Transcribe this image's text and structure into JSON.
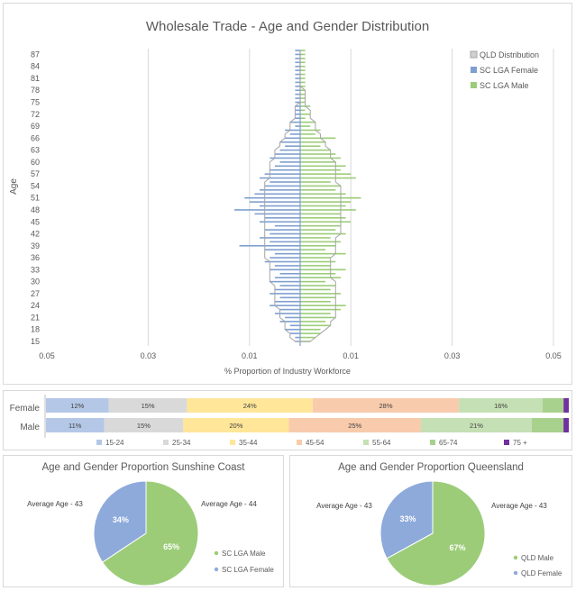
{
  "pyramid": {
    "title": "Wholesale Trade - Age and Gender Distribution",
    "ylabel": "Age",
    "xlabel": "% Proportion of Industry Workforce",
    "xticks": [
      "0.05",
      "0.03",
      "0.01",
      "0.01",
      "0.03",
      "0.05"
    ],
    "legend": [
      "QLD Distribution",
      "SC LGA Female",
      "SC LGA Male"
    ],
    "colors": {
      "female": "#7f9fd0",
      "male": "#9ccc78",
      "qld": "#a6a6a6"
    }
  },
  "chart_data": [
    {
      "type": "bar",
      "title": "Wholesale Trade - Age and Gender Distribution",
      "orientation": "horizontal",
      "xlabel": "% Proportion of Industry Workforce",
      "ylabel": "Age",
      "xlim": [
        -0.05,
        0.05
      ],
      "yticks": [
        15,
        18,
        21,
        24,
        27,
        30,
        33,
        36,
        39,
        42,
        45,
        48,
        51,
        54,
        57,
        60,
        63,
        66,
        69,
        72,
        75,
        78,
        81,
        84,
        87
      ],
      "ages": [
        15,
        16,
        17,
        18,
        19,
        20,
        21,
        22,
        23,
        24,
        25,
        26,
        27,
        28,
        29,
        30,
        31,
        32,
        33,
        34,
        35,
        36,
        37,
        38,
        39,
        40,
        41,
        42,
        43,
        44,
        45,
        46,
        47,
        48,
        49,
        50,
        51,
        52,
        53,
        54,
        55,
        56,
        57,
        58,
        59,
        60,
        61,
        62,
        63,
        64,
        65,
        66,
        67,
        68,
        69,
        70,
        71,
        72,
        73,
        74,
        75,
        76,
        77,
        78,
        79,
        80,
        81,
        82,
        83,
        84,
        85,
        86,
        87,
        88
      ],
      "series": [
        {
          "name": "SC LGA Female",
          "values": [
            -0.001,
            -0.001,
            -0.002,
            -0.003,
            -0.002,
            -0.004,
            -0.003,
            -0.005,
            -0.004,
            -0.006,
            -0.005,
            -0.004,
            -0.006,
            -0.005,
            -0.004,
            -0.006,
            -0.005,
            -0.004,
            -0.006,
            -0.005,
            -0.007,
            -0.006,
            -0.005,
            -0.007,
            -0.012,
            -0.006,
            -0.008,
            -0.006,
            -0.007,
            -0.005,
            -0.008,
            -0.007,
            -0.009,
            -0.013,
            -0.008,
            -0.01,
            -0.011,
            -0.009,
            -0.008,
            -0.007,
            -0.006,
            -0.008,
            -0.007,
            -0.006,
            -0.005,
            -0.004,
            -0.006,
            -0.005,
            -0.004,
            -0.003,
            -0.004,
            -0.003,
            -0.002,
            -0.003,
            -0.001,
            -0.002,
            -0.001,
            -0.001,
            -0.001,
            -0.001,
            -0.001,
            -0.001,
            -0.001,
            -0.001,
            -0.001,
            -0.001,
            -0.001,
            -0.001,
            -0.001,
            -0.001,
            -0.001,
            -0.001,
            -0.001,
            -0.001
          ]
        },
        {
          "name": "SC LGA Male",
          "values": [
            0.002,
            0.003,
            0.004,
            0.004,
            0.006,
            0.005,
            0.007,
            0.006,
            0.008,
            0.009,
            0.006,
            0.007,
            0.008,
            0.006,
            0.007,
            0.005,
            0.008,
            0.007,
            0.009,
            0.006,
            0.007,
            0.006,
            0.009,
            0.005,
            0.007,
            0.008,
            0.006,
            0.009,
            0.007,
            0.008,
            0.01,
            0.009,
            0.008,
            0.011,
            0.009,
            0.01,
            0.012,
            0.009,
            0.007,
            0.008,
            0.006,
            0.011,
            0.01,
            0.008,
            0.009,
            0.007,
            0.008,
            0.007,
            0.006,
            0.004,
            0.005,
            0.007,
            0.003,
            0.004,
            0.002,
            0.003,
            0.001,
            0.002,
            0.001,
            0.002,
            0.001,
            0.001,
            0.001,
            0.001,
            0.001,
            0.001,
            0.001,
            0.001,
            0.001,
            0.001,
            0.001,
            0.001,
            0.001,
            0.001
          ]
        },
        {
          "name": "QLD Distribution",
          "type": "line",
          "female": [
            -0.001,
            -0.002,
            -0.002,
            -0.003,
            -0.003,
            -0.003,
            -0.004,
            -0.004,
            -0.004,
            -0.005,
            -0.005,
            -0.005,
            -0.005,
            -0.005,
            -0.005,
            -0.006,
            -0.006,
            -0.006,
            -0.006,
            -0.006,
            -0.006,
            -0.007,
            -0.007,
            -0.007,
            -0.007,
            -0.007,
            -0.007,
            -0.007,
            -0.007,
            -0.007,
            -0.007,
            -0.007,
            -0.007,
            -0.007,
            -0.007,
            -0.007,
            -0.007,
            -0.007,
            -0.007,
            -0.007,
            -0.007,
            -0.006,
            -0.006,
            -0.006,
            -0.006,
            -0.006,
            -0.005,
            -0.005,
            -0.005,
            -0.004,
            -0.004,
            -0.003,
            -0.003,
            -0.002,
            -0.002,
            -0.002,
            -0.001,
            -0.001,
            -0.001,
            -0.001,
            0,
            0,
            0,
            0,
            0,
            0,
            0,
            0,
            0,
            0,
            0,
            0,
            0,
            0
          ],
          "male": [
            0.002,
            0.003,
            0.004,
            0.005,
            0.006,
            0.006,
            0.007,
            0.007,
            0.007,
            0.007,
            0.007,
            0.007,
            0.007,
            0.007,
            0.007,
            0.007,
            0.006,
            0.006,
            0.006,
            0.006,
            0.006,
            0.006,
            0.007,
            0.007,
            0.007,
            0.007,
            0.007,
            0.008,
            0.008,
            0.008,
            0.008,
            0.008,
            0.008,
            0.008,
            0.008,
            0.008,
            0.008,
            0.008,
            0.008,
            0.008,
            0.007,
            0.007,
            0.007,
            0.007,
            0.007,
            0.007,
            0.006,
            0.006,
            0.006,
            0.005,
            0.005,
            0.004,
            0.004,
            0.003,
            0.003,
            0.003,
            0.002,
            0.002,
            0.002,
            0.001,
            0.001,
            0.001,
            0.001,
            0.001,
            0,
            0,
            0,
            0,
            0,
            0,
            0,
            0,
            0,
            0
          ]
        }
      ]
    },
    {
      "type": "bar",
      "stacked": true,
      "orientation": "horizontal",
      "categories": [
        "Female",
        "Male"
      ],
      "series": [
        {
          "name": "15-24",
          "values": [
            12,
            11
          ],
          "labels": [
            "12%",
            "11%"
          ]
        },
        {
          "name": "25-34",
          "values": [
            15,
            15
          ],
          "labels": [
            "15%",
            "15%"
          ]
        },
        {
          "name": "35-44",
          "values": [
            24,
            20
          ],
          "labels": [
            "24%",
            "20%"
          ]
        },
        {
          "name": "45-54",
          "values": [
            28,
            25
          ],
          "labels": [
            "28%",
            "25%"
          ]
        },
        {
          "name": "55-64",
          "values": [
            16,
            21
          ],
          "labels": [
            "16%",
            "21%"
          ]
        },
        {
          "name": "65-74",
          "values": [
            4,
            6
          ],
          "labels": [
            "",
            ""
          ]
        },
        {
          "name": "75 +",
          "values": [
            1,
            1
          ],
          "labels": [
            "",
            ""
          ]
        }
      ]
    },
    {
      "type": "pie",
      "title": "Age and Gender Proportion Sunshine Coast",
      "slices": [
        {
          "name": "SC LGA Male",
          "value": 65,
          "label": "65%",
          "annotation": "Average Age - 44"
        },
        {
          "name": "SC LGA Female",
          "value": 34,
          "label": "34%",
          "annotation": "Average Age - 43"
        }
      ]
    },
    {
      "type": "pie",
      "title": "Age and Gender Proportion Queensland",
      "slices": [
        {
          "name": "QLD Male",
          "value": 67,
          "label": "67%",
          "annotation": "Average Age - 43"
        },
        {
          "name": "QLD Female",
          "value": 33,
          "label": "33%",
          "annotation": "Average Age - 43"
        }
      ]
    }
  ],
  "stack": {
    "legend": [
      "15-24",
      "25-34",
      "35-44",
      "45-54",
      "55-64",
      "65-74",
      "75 +"
    ],
    "colors": [
      "#b4c7e7",
      "#d9d9d9",
      "#ffe699",
      "#f8cbad",
      "#c5e0b4",
      "#a9d18e",
      "#7030a0"
    ]
  },
  "pies": [
    {
      "title": "Age and Gender Proportion Sunshine Coast",
      "maleColor": "#9ccc78",
      "femaleColor": "#8eaadb"
    },
    {
      "title": "Age and Gender Proportion Queensland",
      "maleColor": "#9ccc78",
      "femaleColor": "#8eaadb"
    }
  ]
}
